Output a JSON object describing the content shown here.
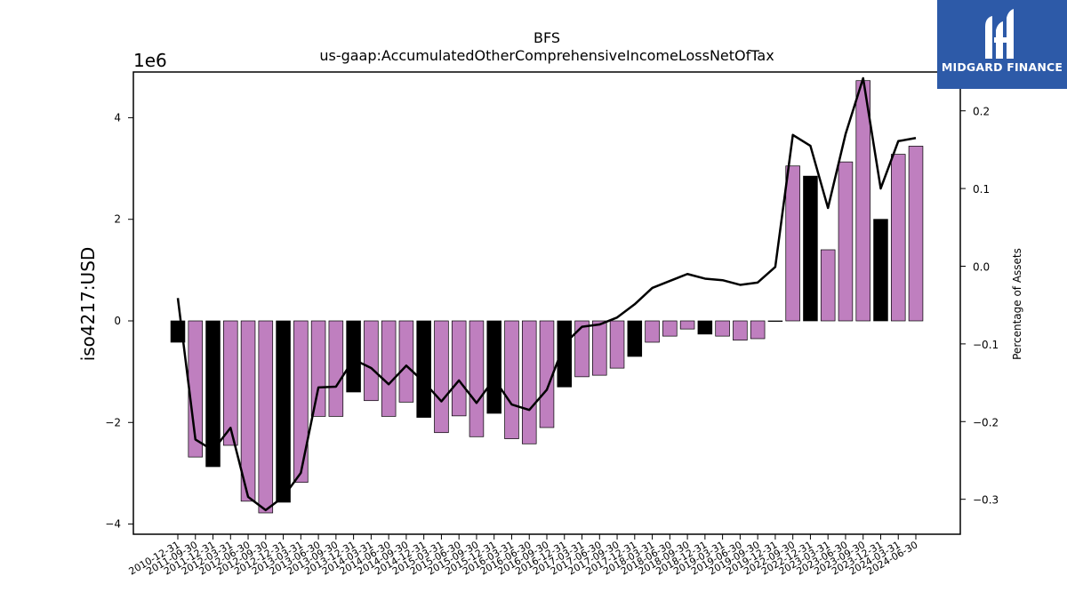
{
  "chart_data": {
    "type": "bar",
    "title": "BFS",
    "subtitle": "us-gaap:AccumulatedOtherComprehensiveIncomeLossNetOfTax",
    "ylabel": "iso4217:USD",
    "y2label": "Percentage of Assets",
    "yscale_label": "1e6",
    "ylim": [
      -4.2,
      4.9
    ],
    "y2lim": [
      -0.345,
      0.25
    ],
    "yticks": [
      -4,
      -2,
      0,
      2,
      4
    ],
    "y2ticks": [
      -0.3,
      -0.2,
      -0.1,
      0.0,
      0.1,
      0.2
    ],
    "y2ticklabels": [
      "−0.3",
      "−0.2",
      "−0.1",
      "0.0",
      "0.1",
      "0.2"
    ],
    "categories": [
      "2010-12-31",
      "2011-09-30",
      "2011-12-31",
      "2012-03-31",
      "2012-06-30",
      "2012-09-30",
      "2012-12-31",
      "2013-03-31",
      "2013-06-30",
      "2013-09-30",
      "2013-12-31",
      "2014-03-31",
      "2014-06-30",
      "2014-09-30",
      "2014-12-31",
      "2015-03-31",
      "2015-06-30",
      "2015-09-30",
      "2015-12-31",
      "2016-03-31",
      "2016-06-30",
      "2016-09-30",
      "2016-12-31",
      "2017-03-31",
      "2017-06-30",
      "2017-09-30",
      "2017-12-31",
      "2018-03-31",
      "2018-06-30",
      "2018-09-30",
      "2018-12-31",
      "2019-03-31",
      "2019-06-30",
      "2019-09-30",
      "2019-12-31",
      "2022-09-30",
      "2022-12-31",
      "2023-03-31",
      "2023-06-30",
      "2023-09-30",
      "2023-12-31",
      "2024-03-31",
      "2024-06-30"
    ],
    "series": [
      {
        "values": [
          -0.42,
          -2.68,
          -2.87,
          -2.45,
          -3.55,
          -3.78,
          -3.57,
          -3.18,
          -1.88,
          -1.88,
          -1.4,
          -1.57,
          -1.88,
          -1.6,
          -1.9,
          -2.2,
          -1.87,
          -2.28,
          -1.82,
          -2.32,
          -2.42,
          -2.1,
          -1.3,
          -1.1,
          -1.07,
          -0.93,
          -0.7,
          -0.42,
          -0.3,
          -0.16,
          -0.26,
          -0.3,
          -0.38,
          -0.35,
          -0.01,
          3.05,
          2.85,
          1.4,
          3.13,
          4.73,
          2.0,
          3.28,
          3.44
        ],
        "highlight": [
          true,
          false,
          true,
          false,
          false,
          false,
          true,
          false,
          false,
          false,
          true,
          false,
          false,
          false,
          true,
          false,
          false,
          false,
          true,
          false,
          false,
          false,
          true,
          false,
          false,
          false,
          true,
          false,
          false,
          false,
          true,
          false,
          false,
          false,
          true,
          false,
          true,
          false,
          false,
          false,
          true,
          false,
          false
        ],
        "colors": {
          "default": "#bf7fbf",
          "highlight": "#000000"
        }
      },
      {
        "axis": "right",
        "type": "line",
        "values": [
          -0.041,
          -0.223,
          -0.237,
          -0.208,
          -0.297,
          -0.314,
          -0.297,
          -0.266,
          -0.156,
          -0.155,
          -0.12,
          -0.131,
          -0.152,
          -0.128,
          -0.149,
          -0.174,
          -0.147,
          -0.176,
          -0.145,
          -0.178,
          -0.185,
          -0.159,
          -0.1,
          -0.078,
          -0.075,
          -0.066,
          -0.049,
          -0.028,
          -0.019,
          -0.01,
          -0.016,
          -0.018,
          -0.024,
          -0.021,
          -0.001,
          0.169,
          0.155,
          0.075,
          0.17,
          0.242,
          0.1,
          0.161,
          0.165
        ],
        "color": "#000000"
      }
    ]
  },
  "logo": {
    "text": "MIDGARD FINANCE",
    "background": "#2d5aa8",
    "foreground": "#ffffff"
  }
}
